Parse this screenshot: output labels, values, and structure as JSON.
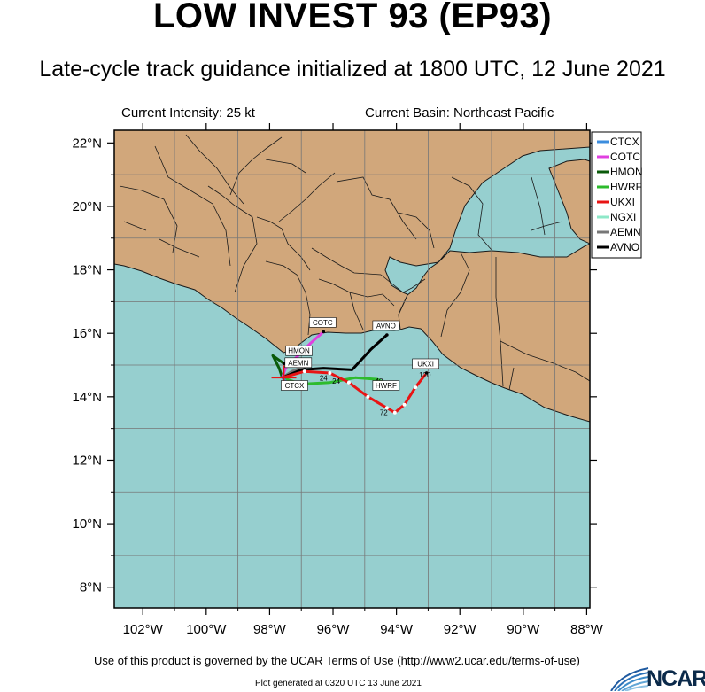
{
  "header": {
    "title": "LOW INVEST 93 (EP93)",
    "subtitle": "Late-cycle track guidance initialized at 1800 UTC, 12 June 2021",
    "current_intensity": "Current Intensity: 25 kt",
    "current_basin": "Current Basin: Northeast Pacific"
  },
  "footer": {
    "terms": "Use of this product is governed by the UCAR Terms of Use (http://www2.ucar.edu/terms-of-use)",
    "generated": "Plot generated at 0320 UTC   13 June 2021",
    "logo_text": "NCAR"
  },
  "colors": {
    "land": "#d1a77b",
    "ocean": "#96cfcf",
    "border": "#1a1a1a",
    "grid": "#777777"
  },
  "chart_data": {
    "type": "line",
    "xlabel": "",
    "ylabel": "",
    "xlim": [
      -102.9,
      -87.9
    ],
    "ylim": [
      7.35,
      22.4
    ],
    "x_ticks": [
      {
        "value": -102,
        "label": "102°W"
      },
      {
        "value": -100,
        "label": "100°W"
      },
      {
        "value": -98,
        "label": "98°W"
      },
      {
        "value": -96,
        "label": "96°W"
      },
      {
        "value": -94,
        "label": "94°W"
      },
      {
        "value": -92,
        "label": "92°W"
      },
      {
        "value": -90,
        "label": "90°W"
      },
      {
        "value": -88,
        "label": "88°W"
      }
    ],
    "y_ticks": [
      {
        "value": 8,
        "label": "8°N"
      },
      {
        "value": 10,
        "label": "10°N"
      },
      {
        "value": 12,
        "label": "12°N"
      },
      {
        "value": 14,
        "label": "14°N"
      },
      {
        "value": 16,
        "label": "16°N"
      },
      {
        "value": 18,
        "label": "18°N"
      },
      {
        "value": 20,
        "label": "20°N"
      },
      {
        "value": 22,
        "label": "22°N"
      }
    ],
    "grid_lines": {
      "lon": [
        -101,
        -99,
        -97,
        -95,
        -93,
        -91,
        -89
      ],
      "lat": [
        9,
        11,
        13,
        15,
        17,
        19,
        21
      ]
    },
    "legend_position": "top-right",
    "series": [
      {
        "name": "CTCX",
        "color": "#3c8dde",
        "label": "CTCX",
        "points": [
          [
            -97.6,
            14.6
          ],
          [
            -97.55,
            14.55
          ],
          [
            -97.5,
            14.5
          ],
          [
            -97.45,
            14.45
          ],
          [
            -97.3,
            14.4
          ]
        ],
        "hours": []
      },
      {
        "name": "COTC",
        "color": "#e040e0",
        "label": "COTC",
        "points": [
          [
            -97.6,
            14.6
          ],
          [
            -97.5,
            14.9
          ],
          [
            -97.1,
            15.3
          ],
          [
            -96.7,
            15.7
          ],
          [
            -96.3,
            16.05
          ]
        ],
        "hours": []
      },
      {
        "name": "HMON",
        "color": "#0a5a0a",
        "label": "HMON",
        "points": [
          [
            -97.6,
            14.6
          ],
          [
            -97.7,
            14.9
          ],
          [
            -97.9,
            15.3
          ],
          [
            -97.55,
            15.05
          ]
        ],
        "hours": []
      },
      {
        "name": "HWRF",
        "color": "#2dbb2d",
        "label": "HWRF",
        "points": [
          [
            -97.6,
            14.6
          ],
          [
            -97.0,
            14.4
          ],
          [
            -96.1,
            14.45
          ],
          [
            -95.3,
            14.6
          ],
          [
            -94.6,
            14.55
          ],
          [
            -94.3,
            14.4
          ]
        ],
        "hours": [
          {
            "text": "48",
            "at": [
              -94.55,
              14.5
            ]
          }
        ]
      },
      {
        "name": "UKXI",
        "color": "#e81414",
        "label": "UKXI",
        "points": [
          [
            -97.6,
            14.6
          ],
          [
            -96.9,
            14.8
          ],
          [
            -96.1,
            14.75
          ],
          [
            -95.5,
            14.45
          ],
          [
            -94.9,
            14.0
          ],
          [
            -94.3,
            13.65
          ],
          [
            -94.05,
            13.5
          ],
          [
            -93.75,
            13.75
          ],
          [
            -93.4,
            14.3
          ],
          [
            -93.05,
            14.75
          ]
        ],
        "hours": [
          {
            "text": "24",
            "at": [
              -95.9,
              14.5
            ]
          },
          {
            "text": "72",
            "at": [
              -94.4,
              13.5
            ]
          },
          {
            "text": "120",
            "at": [
              -93.1,
              14.7
            ]
          }
        ]
      },
      {
        "name": "NGXI",
        "color": "#8ee8c8",
        "label": "NGXI",
        "points": [],
        "hours": []
      },
      {
        "name": "AEMN",
        "color": "#777777",
        "label": "AEMN",
        "points": [
          [
            -97.6,
            14.6
          ],
          [
            -97.3,
            14.8
          ],
          [
            -96.9,
            14.95
          ]
        ],
        "hours": []
      },
      {
        "name": "AVNO",
        "color": "#000000",
        "label": "AVNO",
        "points": [
          [
            -97.6,
            14.6
          ],
          [
            -97.0,
            14.85
          ],
          [
            -96.3,
            14.9
          ],
          [
            -95.4,
            14.85
          ],
          [
            -94.8,
            15.5
          ],
          [
            -94.3,
            15.95
          ]
        ],
        "hours": [
          {
            "text": "24",
            "at": [
              -96.3,
              14.6
            ]
          }
        ]
      }
    ],
    "initial_position": [
      -97.55,
      14.6
    ]
  }
}
